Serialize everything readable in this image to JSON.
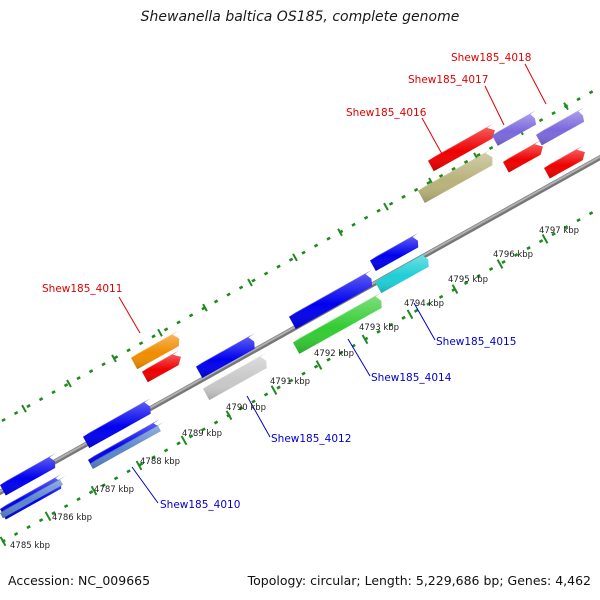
{
  "header": {
    "title": "Shewanella baltica OS185, complete genome"
  },
  "footer": {
    "accession": "Accession: NC_009665",
    "topology": "Topology: circular; Length: 5,229,686 bp; Genes: 4,462"
  },
  "colors": {
    "backbone": "#8c8c8c",
    "tick": "#1f8a1f",
    "label_forward": "#e00000",
    "label_reverse": "#0000cc"
  },
  "ticks": [
    "4785 kbp",
    "4786 kbp",
    "4787 kbp",
    "4788 kbp",
    "4789 kbp",
    "4790 kbp",
    "4791 kbp",
    "4792 kbp",
    "4793 kbp",
    "4794 kbp",
    "4795 kbp",
    "4796 kbp",
    "4797 kbp"
  ],
  "gene_labels": [
    {
      "id": "g4010",
      "text": "Shew185_4010",
      "strand": "reverse"
    },
    {
      "id": "g4011",
      "text": "Shew185_4011",
      "strand": "forward"
    },
    {
      "id": "g4012",
      "text": "Shew185_4012",
      "strand": "reverse"
    },
    {
      "id": "g4014",
      "text": "Shew185_4014",
      "strand": "reverse"
    },
    {
      "id": "g4015",
      "text": "Shew185_4015",
      "strand": "reverse"
    },
    {
      "id": "g4016",
      "text": "Shew185_4016",
      "strand": "forward"
    },
    {
      "id": "g4017",
      "text": "Shew185_4017",
      "strand": "forward"
    },
    {
      "id": "g4018",
      "text": "Shew185_4018",
      "strand": "forward"
    }
  ],
  "feature_colors": {
    "cds": "#ee0000",
    "gene_blue": "#0000ee",
    "orange": "#f08c00",
    "khaki": "#b8b27a",
    "purple": "#7b68dd",
    "green": "#33cc33",
    "cyan": "#1ecfd6",
    "grey": "#c8c8c8",
    "steelblue": "#5b86c9"
  }
}
